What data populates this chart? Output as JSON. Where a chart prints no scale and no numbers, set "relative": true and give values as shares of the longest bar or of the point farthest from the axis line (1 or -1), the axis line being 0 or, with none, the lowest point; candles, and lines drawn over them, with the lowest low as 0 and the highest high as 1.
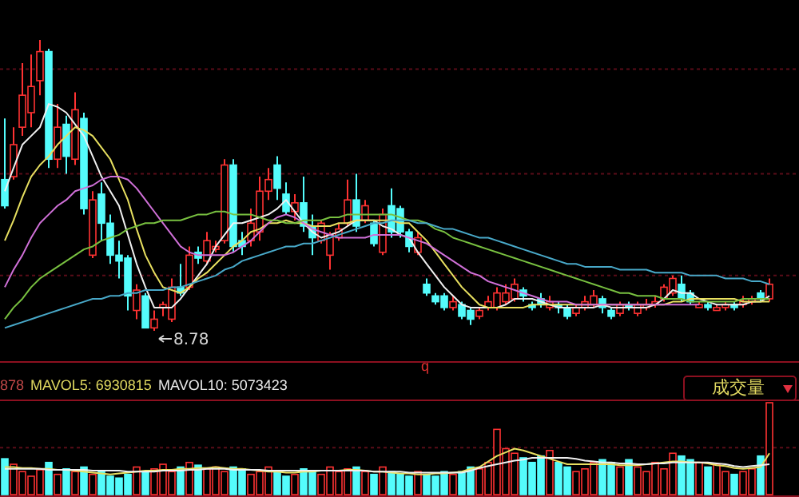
{
  "chart_data": [
    {
      "type": "candlestick",
      "relative": true,
      "ref_lines": [
        {
          "axis": "y",
          "value": 0.9,
          "color": "#5a0c18",
          "line_style": "dotted"
        },
        {
          "axis": "y",
          "value": 0.54,
          "color": "#5a0c18",
          "line_style": "dotted"
        },
        {
          "axis": "y",
          "value": 0.19,
          "color": "#5a0c18",
          "line_style": "dotted"
        }
      ],
      "categories": [
        null,
        null,
        null,
        null,
        null,
        null,
        null,
        null,
        null,
        null,
        null,
        null,
        null,
        null,
        null,
        null,
        null,
        null,
        null,
        null,
        null,
        null,
        null,
        null,
        null,
        null,
        null,
        null,
        null,
        null,
        null,
        null,
        null,
        null,
        null,
        null,
        null,
        null,
        null,
        null,
        null,
        null,
        null,
        null,
        null,
        null,
        null,
        null,
        null,
        null,
        null,
        null,
        null,
        null,
        null,
        null,
        null,
        null,
        null,
        null,
        null,
        null,
        null,
        null,
        null,
        null,
        null,
        null,
        null,
        null,
        null,
        null,
        null,
        null,
        null,
        null,
        null,
        null,
        null,
        null,
        null,
        null,
        null,
        null,
        null,
        null,
        null,
        null
      ],
      "ohlc": [
        [
          0.52,
          0.73,
          0.42,
          0.43
        ],
        [
          0.53,
          0.7,
          0.52,
          0.64
        ],
        [
          0.7,
          0.92,
          0.67,
          0.81
        ],
        [
          0.75,
          0.95,
          0.7,
          0.84
        ],
        [
          0.86,
          1,
          0.81,
          0.96
        ],
        [
          0.96,
          0.97,
          0.56,
          0.59
        ],
        [
          0.59,
          0.78,
          0.56,
          0.7
        ],
        [
          0.71,
          0.74,
          0.54,
          0.6
        ],
        [
          0.59,
          0.82,
          0.57,
          0.76
        ],
        [
          0.73,
          0.75,
          0.4,
          0.42
        ],
        [
          0.26,
          0.48,
          0.25,
          0.45
        ],
        [
          0.47,
          0.51,
          0.31,
          0.37
        ],
        [
          0.37,
          0.4,
          0.23,
          0.26
        ],
        [
          0.26,
          0.31,
          0.18,
          0.24
        ],
        [
          0.25,
          0.26,
          0.07,
          0.12
        ],
        [
          0.07,
          0.16,
          0.04,
          0.14
        ],
        [
          0.12,
          0.13,
          0.01,
          0.01
        ],
        [
          0.01,
          0.07,
          0,
          0.04
        ],
        [
          0.08,
          0.1,
          0.05,
          0.09
        ],
        [
          0.04,
          0.18,
          0.03,
          0.15
        ],
        [
          0.15,
          0.23,
          0.12,
          0.13
        ],
        [
          0.15,
          0.29,
          0.14,
          0.26
        ],
        [
          0.27,
          0.29,
          0.23,
          0.25
        ],
        [
          0.24,
          0.34,
          0.23,
          0.31
        ],
        [
          0.28,
          0.31,
          0.27,
          0.29
        ],
        [
          0.31,
          0.59,
          0.3,
          0.57
        ],
        [
          0.57,
          0.59,
          0.27,
          0.29
        ],
        [
          0.31,
          0.34,
          0.26,
          0.29
        ],
        [
          0.31,
          0.42,
          0.29,
          0.37
        ],
        [
          0.34,
          0.53,
          0.31,
          0.48
        ],
        [
          0.48,
          0.56,
          0.45,
          0.52
        ],
        [
          0.57,
          0.6,
          0.45,
          0.49
        ],
        [
          0.47,
          0.51,
          0.4,
          0.41
        ],
        [
          0.41,
          0.47,
          0.38,
          0.44
        ],
        [
          0.44,
          0.53,
          0.34,
          0.36
        ],
        [
          0.36,
          0.4,
          0.26,
          0.32
        ],
        [
          0.31,
          0.38,
          0.3,
          0.37
        ],
        [
          0.26,
          0.34,
          0.21,
          0.33
        ],
        [
          0.32,
          0.37,
          0.31,
          0.35
        ],
        [
          0.37,
          0.52,
          0.36,
          0.45
        ],
        [
          0.45,
          0.54,
          0.34,
          0.36
        ],
        [
          0.38,
          0.45,
          0.37,
          0.43
        ],
        [
          0.37,
          0.38,
          0.29,
          0.3
        ],
        [
          0.27,
          0.42,
          0.26,
          0.4
        ],
        [
          0.43,
          0.49,
          0.32,
          0.34
        ],
        [
          0.42,
          0.43,
          0.32,
          0.34
        ],
        [
          0.34,
          0.35,
          0.27,
          0.29
        ],
        [
          0.27,
          0.34,
          0.26,
          0.32
        ],
        [
          0.16,
          0.18,
          0.12,
          0.13
        ],
        [
          0.12,
          0.13,
          0.09,
          0.1
        ],
        [
          0.12,
          0.13,
          0.07,
          0.08
        ],
        [
          0.08,
          0.12,
          0.07,
          0.1
        ],
        [
          0.09,
          0.1,
          0.04,
          0.05
        ],
        [
          0.07,
          0.08,
          0.02,
          0.04
        ],
        [
          0.05,
          0.08,
          0.04,
          0.07
        ],
        [
          0.08,
          0.12,
          0.07,
          0.1
        ],
        [
          0.08,
          0.15,
          0.07,
          0.13
        ],
        [
          0.1,
          0.16,
          0.09,
          0.13
        ],
        [
          0.11,
          0.18,
          0.1,
          0.16
        ],
        [
          0.14,
          0.15,
          0.1,
          0.12
        ],
        [
          0.09,
          0.1,
          0.07,
          0.08
        ],
        [
          0.11,
          0.13,
          0.08,
          0.09
        ],
        [
          0.08,
          0.12,
          0.07,
          0.1
        ],
        [
          0.09,
          0.1,
          0.06,
          0.08
        ],
        [
          0.08,
          0.09,
          0.04,
          0.05
        ],
        [
          0.06,
          0.09,
          0.05,
          0.08
        ],
        [
          0.08,
          0.12,
          0.07,
          0.1
        ],
        [
          0.09,
          0.14,
          0.08,
          0.12
        ],
        [
          0.11,
          0.12,
          0.06,
          0.08
        ],
        [
          0.07,
          0.08,
          0.04,
          0.05
        ],
        [
          0.06,
          0.1,
          0.05,
          0.09
        ],
        [
          0.09,
          0.1,
          0.07,
          0.08
        ],
        [
          0.06,
          0.1,
          0.05,
          0.09
        ],
        [
          0.08,
          0.11,
          0.07,
          0.09
        ],
        [
          0.09,
          0.12,
          0.08,
          0.1
        ],
        [
          0.11,
          0.16,
          0.1,
          0.15
        ],
        [
          0.13,
          0.19,
          0.12,
          0.18
        ],
        [
          0.16,
          0.19,
          0.1,
          0.11
        ],
        [
          0.13,
          0.14,
          0.09,
          0.1
        ],
        [
          0.08,
          0.1,
          0.08,
          0.09
        ],
        [
          0.09,
          0.1,
          0.07,
          0.08
        ],
        [
          0.07,
          0.09,
          0.07,
          0.08
        ],
        [
          0.08,
          0.1,
          0.07,
          0.09
        ],
        [
          0.09,
          0.1,
          0.07,
          0.08
        ],
        [
          0.09,
          0.12,
          0.08,
          0.1
        ],
        [
          0.1,
          0.12,
          0.09,
          0.11
        ],
        [
          0.13,
          0.14,
          0.1,
          0.11
        ],
        [
          0.11,
          0.18,
          0.1,
          0.16
        ]
      ],
      "colors": [
        "#54fcfc",
        "#ff3232",
        "#ff3232",
        "#ff3232",
        "#ff3232",
        "#54fcfc",
        "#ff3232",
        "#54fcfc",
        "#ff3232",
        "#54fcfc",
        "#ff3232",
        "#54fcfc",
        "#54fcfc",
        "#54fcfc",
        "#54fcfc",
        "#ff3232",
        "#54fcfc",
        "#ff3232",
        "#ff3232",
        "#ff3232",
        "#54fcfc",
        "#ff3232",
        "#54fcfc",
        "#ff3232",
        "#ff3232",
        "#ff3232",
        "#54fcfc",
        "#54fcfc",
        "#ff3232",
        "#ff3232",
        "#ff3232",
        "#54fcfc",
        "#54fcfc",
        "#ff3232",
        "#54fcfc",
        "#54fcfc",
        "#ff3232",
        "#ff3232",
        "#ff3232",
        "#ff3232",
        "#54fcfc",
        "#ff3232",
        "#54fcfc",
        "#ff3232",
        "#54fcfc",
        "#54fcfc",
        "#54fcfc",
        "#ff3232",
        "#54fcfc",
        "#54fcfc",
        "#54fcfc",
        "#ff3232",
        "#54fcfc",
        "#54fcfc",
        "#ff3232",
        "#ff3232",
        "#ff3232",
        "#ff3232",
        "#ff3232",
        "#54fcfc",
        "#54fcfc",
        "#54fcfc",
        "#ff3232",
        "#54fcfc",
        "#54fcfc",
        "#ff3232",
        "#ff3232",
        "#ff3232",
        "#54fcfc",
        "#54fcfc",
        "#ff3232",
        "#54fcfc",
        "#ff3232",
        "#ff3232",
        "#ff3232",
        "#ff3232",
        "#ff3232",
        "#54fcfc",
        "#54fcfc",
        "#ff3232",
        "#54fcfc",
        "#ff3232",
        "#ff3232",
        "#54fcfc",
        "#ff3232",
        "#ff3232",
        "#54fcfc",
        "#ff3232"
      ],
      "series": [
        {
          "type": "line",
          "color": "#f0f0f0",
          "values": [
            0.48,
            0.56,
            0.64,
            0.67,
            0.7,
            0.78,
            0.77,
            0.75,
            0.71,
            0.67,
            0.6,
            0.53,
            0.48,
            0.43,
            0.33,
            0.23,
            0.15,
            0.08,
            0.08,
            0.08,
            0.11,
            0.15,
            0.19,
            0.23,
            0.29,
            0.33,
            0.37,
            0.37,
            0.38,
            0.39,
            0.4,
            0.42,
            0.45,
            0.41,
            0.37,
            0.34,
            0.32,
            0.33,
            0.34,
            0.36,
            0.38,
            0.38,
            0.38,
            0.36,
            0.35,
            0.33,
            0.32,
            0.27,
            0.23,
            0.19,
            0.15,
            0.12,
            0.09,
            0.08,
            0.08,
            0.08,
            0.08,
            0.09,
            0.11,
            0.11,
            0.11,
            0.1,
            0.09,
            0.08,
            0.08,
            0.08,
            0.08,
            0.08,
            0.09,
            0.08,
            0.08,
            0.08,
            0.08,
            0.08,
            0.09,
            0.11,
            0.14,
            0.13,
            0.13,
            0.11,
            0.1,
            0.09,
            0.09,
            0.09,
            0.09,
            0.1,
            0.1,
            0.12
          ]
        },
        {
          "type": "line",
          "color": "#e8e060",
          "values": [
            0.31,
            0.38,
            0.46,
            0.53,
            0.57,
            0.6,
            0.64,
            0.67,
            0.7,
            0.69,
            0.67,
            0.63,
            0.59,
            0.52,
            0.45,
            0.35,
            0.26,
            0.2,
            0.15,
            0.14,
            0.13,
            0.15,
            0.18,
            0.2,
            0.23,
            0.26,
            0.29,
            0.31,
            0.34,
            0.35,
            0.37,
            0.37,
            0.38,
            0.37,
            0.37,
            0.36,
            0.36,
            0.36,
            0.37,
            0.37,
            0.38,
            0.38,
            0.38,
            0.38,
            0.38,
            0.37,
            0.37,
            0.34,
            0.31,
            0.27,
            0.23,
            0.19,
            0.15,
            0.12,
            0.09,
            0.08,
            0.08,
            0.08,
            0.08,
            0.08,
            0.09,
            0.09,
            0.09,
            0.09,
            0.09,
            0.09,
            0.09,
            0.09,
            0.09,
            0.09,
            0.09,
            0.09,
            0.09,
            0.09,
            0.09,
            0.09,
            0.1,
            0.1,
            0.11,
            0.11,
            0.11,
            0.11,
            0.11,
            0.11,
            0.1,
            0.1,
            0.1,
            0.1
          ]
        },
        {
          "type": "line",
          "color": "#d070d8",
          "values": [
            0.15,
            0.21,
            0.26,
            0.32,
            0.37,
            0.4,
            0.43,
            0.45,
            0.48,
            0.49,
            0.5,
            0.52,
            0.53,
            0.53,
            0.52,
            0.49,
            0.45,
            0.41,
            0.37,
            0.33,
            0.29,
            0.27,
            0.26,
            0.26,
            0.26,
            0.26,
            0.27,
            0.29,
            0.31,
            0.34,
            0.37,
            0.39,
            0.4,
            0.39,
            0.37,
            0.35,
            0.34,
            0.33,
            0.32,
            0.32,
            0.32,
            0.32,
            0.33,
            0.33,
            0.33,
            0.33,
            0.32,
            0.31,
            0.3,
            0.28,
            0.26,
            0.24,
            0.22,
            0.2,
            0.19,
            0.17,
            0.16,
            0.15,
            0.14,
            0.13,
            0.12,
            0.11,
            0.1,
            0.1,
            0.1,
            0.09,
            0.09,
            0.09,
            0.09,
            0.09,
            0.09,
            0.09,
            0.09,
            0.09,
            0.09,
            0.09,
            0.09,
            0.09,
            0.09,
            0.09,
            null,
            null,
            null,
            null,
            null,
            null,
            null,
            null
          ]
        },
        {
          "type": "line",
          "color": "#78c040",
          "values": [
            0.04,
            0.08,
            0.11,
            0.15,
            0.18,
            0.2,
            0.22,
            0.24,
            0.26,
            0.28,
            0.29,
            0.31,
            0.32,
            0.33,
            0.35,
            0.36,
            0.37,
            0.37,
            0.38,
            0.38,
            0.38,
            0.39,
            0.4,
            0.4,
            0.41,
            0.41,
            0.4,
            0.4,
            0.4,
            0.39,
            0.38,
            0.38,
            0.37,
            0.37,
            0.38,
            0.38,
            0.38,
            0.39,
            0.39,
            0.4,
            0.4,
            0.4,
            0.4,
            0.4,
            0.4,
            0.39,
            0.38,
            0.38,
            0.37,
            0.35,
            0.34,
            0.32,
            0.31,
            0.3,
            0.29,
            0.28,
            0.27,
            0.26,
            0.25,
            0.24,
            0.23,
            0.22,
            0.21,
            0.2,
            0.19,
            0.18,
            0.17,
            0.16,
            0.15,
            0.14,
            0.13,
            0.13,
            0.12,
            0.12,
            0.12,
            0.11,
            0.11,
            0.11,
            0.1,
            0.1,
            0.1,
            0.1,
            0.1,
            0.1,
            0.11,
            0.11,
            0.11,
            0.11
          ]
        },
        {
          "type": "line",
          "color": "#48a8c8",
          "values": [
            0.01,
            0.02,
            0.03,
            0.04,
            0.05,
            0.06,
            0.07,
            0.08,
            0.09,
            0.1,
            0.11,
            0.11,
            0.12,
            0.12,
            0.13,
            0.13,
            0.14,
            0.14,
            0.14,
            0.15,
            0.15,
            0.16,
            0.17,
            0.18,
            0.19,
            0.21,
            0.22,
            0.24,
            0.25,
            0.26,
            0.27,
            0.28,
            0.29,
            0.29,
            0.3,
            0.3,
            0.31,
            0.32,
            0.33,
            0.34,
            0.35,
            0.36,
            0.37,
            0.37,
            0.38,
            0.38,
            0.38,
            0.37,
            0.37,
            0.36,
            0.35,
            0.35,
            0.34,
            0.33,
            0.32,
            0.32,
            0.31,
            0.3,
            0.29,
            0.28,
            0.27,
            0.26,
            0.25,
            0.24,
            0.23,
            0.23,
            0.22,
            0.22,
            0.22,
            0.22,
            0.21,
            0.21,
            0.21,
            0.21,
            0.2,
            0.2,
            0.2,
            0.2,
            0.19,
            0.19,
            0.19,
            0.19,
            0.18,
            0.18,
            0.18,
            0.17,
            0.17,
            0.16
          ]
        }
      ],
      "annotations": [
        "8.78"
      ]
    },
    {
      "type": "bar",
      "relative": true,
      "ref_lines": [
        {
          "axis": "y",
          "value": 0.51,
          "color": "#5a0c18",
          "line_style": "dotted"
        }
      ],
      "categories": [
        null,
        null,
        null,
        null,
        null,
        null,
        null,
        null,
        null,
        null,
        null,
        null,
        null,
        null,
        null,
        null,
        null,
        null,
        null,
        null,
        null,
        null,
        null,
        null,
        null,
        null,
        null,
        null,
        null,
        null,
        null,
        null,
        null,
        null,
        null,
        null,
        null,
        null,
        null,
        null,
        null,
        null,
        null,
        null,
        null,
        null,
        null,
        null,
        null,
        null,
        null,
        null,
        null,
        null,
        null,
        null,
        null,
        null,
        null,
        null,
        null,
        null,
        null,
        null,
        null,
        null,
        null,
        null,
        null,
        null,
        null,
        null,
        null,
        null,
        null,
        null,
        null,
        null,
        null,
        null,
        null,
        null,
        null,
        null,
        null,
        null,
        null,
        null
      ],
      "series": [
        {
          "type": "bar",
          "colors": [
            "#54fcfc",
            "#ff3232",
            "#ff3232",
            "#ff3232",
            "#ff3232",
            "#54fcfc",
            "#ff3232",
            "#54fcfc",
            "#ff3232",
            "#54fcfc",
            "#ff3232",
            "#54fcfc",
            "#54fcfc",
            "#54fcfc",
            "#54fcfc",
            "#ff3232",
            "#54fcfc",
            "#ff3232",
            "#ff3232",
            "#ff3232",
            "#54fcfc",
            "#ff3232",
            "#54fcfc",
            "#ff3232",
            "#ff3232",
            "#ff3232",
            "#54fcfc",
            "#54fcfc",
            "#ff3232",
            "#ff3232",
            "#ff3232",
            "#54fcfc",
            "#54fcfc",
            "#ff3232",
            "#54fcfc",
            "#54fcfc",
            "#ff3232",
            "#ff3232",
            "#ff3232",
            "#ff3232",
            "#54fcfc",
            "#ff3232",
            "#54fcfc",
            "#ff3232",
            "#54fcfc",
            "#54fcfc",
            "#54fcfc",
            "#ff3232",
            "#54fcfc",
            "#54fcfc",
            "#54fcfc",
            "#ff3232",
            "#54fcfc",
            "#54fcfc",
            "#ff3232",
            "#ff3232",
            "#ff3232",
            "#ff3232",
            "#ff3232",
            "#54fcfc",
            "#54fcfc",
            "#54fcfc",
            "#ff3232",
            "#54fcfc",
            "#54fcfc",
            "#ff3232",
            "#ff3232",
            "#ff3232",
            "#54fcfc",
            "#54fcfc",
            "#ff3232",
            "#54fcfc",
            "#ff3232",
            "#ff3232",
            "#ff3232",
            "#ff3232",
            "#ff3232",
            "#54fcfc",
            "#54fcfc",
            "#ff3232",
            "#54fcfc",
            "#ff3232",
            "#ff3232",
            "#54fcfc",
            "#ff3232",
            "#ff3232",
            "#54fcfc",
            "#ff3232"
          ],
          "values": [
            0.39,
            0.33,
            0.25,
            0.2,
            0.27,
            0.35,
            0.22,
            0.28,
            0.25,
            0.3,
            0.22,
            0.25,
            0.2,
            0.18,
            0.22,
            0.3,
            0.25,
            0.28,
            0.33,
            0.25,
            0.3,
            0.35,
            0.32,
            0.28,
            0.3,
            0.25,
            0.3,
            0.28,
            0.22,
            0.25,
            0.3,
            0.25,
            0.2,
            0.22,
            0.28,
            0.25,
            0.22,
            0.3,
            0.25,
            0.28,
            0.3,
            0.25,
            0.22,
            0.3,
            0.25,
            0.22,
            0.2,
            0.25,
            0.22,
            0.2,
            0.25,
            0.22,
            0.25,
            0.3,
            0.28,
            0.35,
            0.71,
            0.5,
            0.45,
            0.4,
            0.35,
            0.42,
            0.48,
            0.35,
            0.3,
            0.25,
            0.28,
            0.35,
            0.38,
            0.35,
            0.3,
            0.38,
            0.3,
            0.25,
            0.35,
            0.28,
            0.45,
            0.42,
            0.38,
            0.35,
            0.3,
            0.33,
            0.25,
            0.22,
            0.25,
            0.28,
            0.42,
            1
          ]
        },
        {
          "type": "line",
          "color": "#e8e060",
          "values": [
            0.3,
            0.3,
            0.29,
            0.29,
            0.28,
            0.28,
            0.27,
            0.27,
            0.26,
            0.25,
            0.24,
            0.23,
            0.22,
            0.23,
            0.24,
            0.25,
            0.26,
            0.26,
            0.27,
            0.27,
            0.28,
            0.28,
            0.29,
            0.29,
            0.3,
            0.29,
            0.28,
            0.28,
            0.27,
            0.26,
            0.25,
            0.25,
            0.24,
            0.24,
            0.25,
            0.25,
            0.26,
            0.26,
            0.26,
            0.27,
            0.27,
            0.26,
            0.25,
            0.25,
            0.24,
            0.23,
            0.23,
            0.22,
            0.22,
            0.23,
            0.23,
            0.24,
            0.25,
            0.28,
            0.3,
            0.36,
            0.42,
            0.46,
            0.5,
            0.48,
            0.45,
            0.42,
            0.39,
            0.36,
            0.33,
            0.33,
            0.33,
            0.33,
            0.33,
            0.33,
            0.32,
            0.32,
            0.32,
            0.33,
            0.34,
            0.35,
            0.36,
            0.36,
            0.35,
            0.35,
            0.34,
            0.32,
            0.31,
            0.29,
            0.28,
            0.29,
            0.3,
            0.45
          ]
        },
        {
          "type": "line",
          "color": "#f0f0f0",
          "values": [
            0.28,
            0.28,
            0.28,
            0.28,
            0.28,
            0.27,
            0.27,
            0.27,
            0.27,
            0.27,
            0.26,
            0.26,
            0.26,
            0.26,
            0.25,
            0.25,
            0.25,
            0.25,
            0.26,
            0.26,
            0.26,
            0.27,
            0.27,
            0.28,
            0.28,
            0.28,
            0.27,
            0.27,
            0.27,
            0.27,
            0.26,
            0.26,
            0.26,
            0.26,
            0.26,
            0.26,
            0.26,
            0.26,
            0.26,
            0.26,
            0.26,
            0.26,
            0.25,
            0.25,
            0.25,
            0.25,
            0.24,
            0.24,
            0.24,
            0.24,
            0.24,
            0.24,
            0.24,
            0.26,
            0.29,
            0.31,
            0.33,
            0.35,
            0.37,
            0.38,
            0.4,
            0.4,
            0.4,
            0.4,
            0.4,
            0.39,
            0.37,
            0.36,
            0.35,
            0.35,
            0.34,
            0.34,
            0.33,
            0.33,
            0.34,
            0.34,
            0.35,
            0.35,
            0.35,
            0.35,
            0.35,
            0.34,
            0.33,
            0.31,
            0.3,
            0.31,
            0.32,
            0.33
          ]
        }
      ],
      "annotations": [
        "878",
        "MAVOL5: 6930815",
        "MAVOL10: 5073423",
        "成交量",
        "q"
      ]
    }
  ]
}
